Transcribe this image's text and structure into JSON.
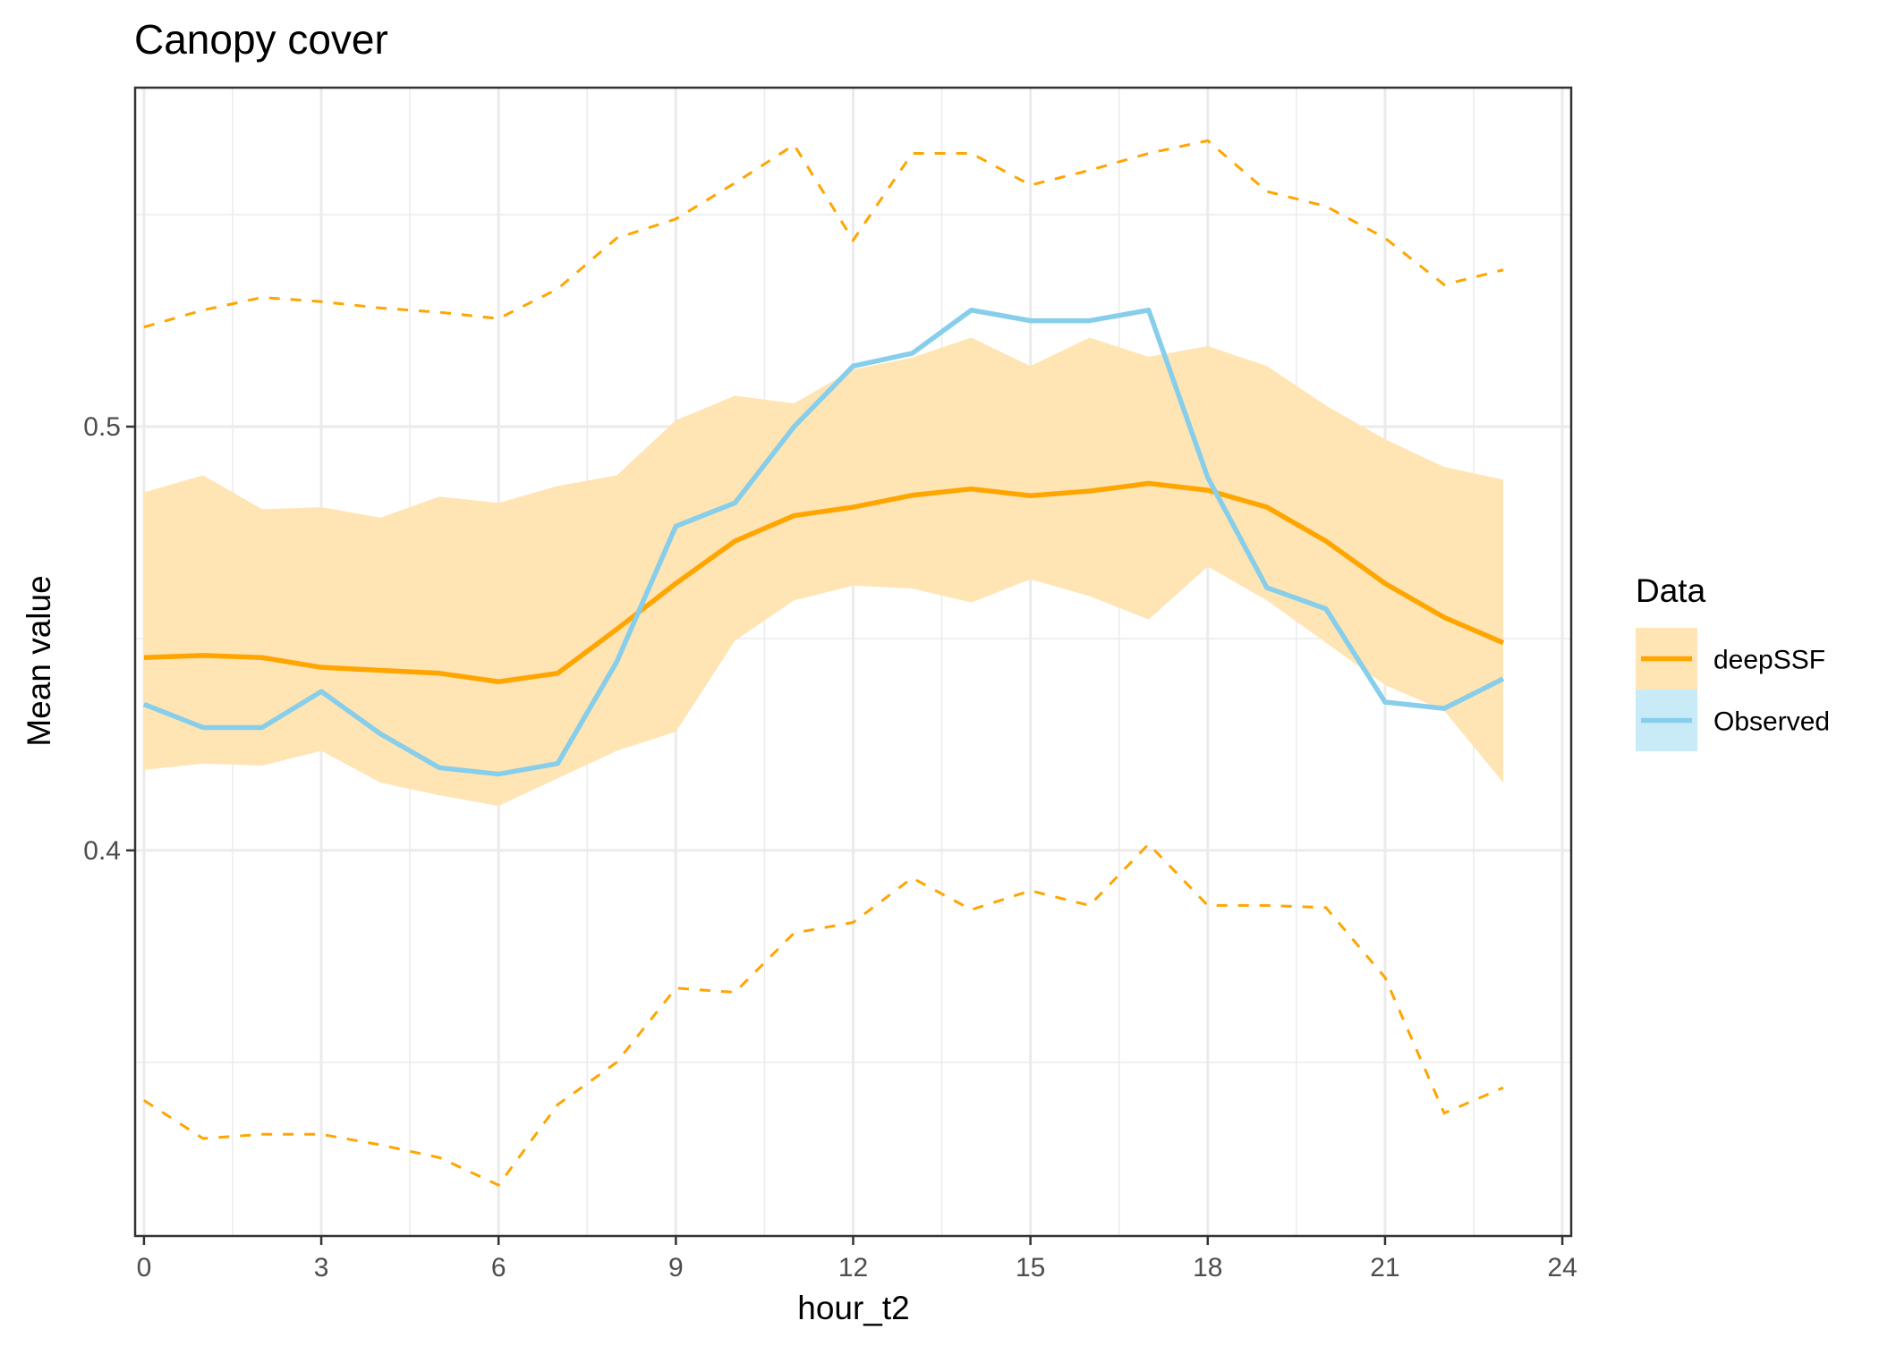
{
  "chart_data": {
    "type": "line",
    "title": "Canopy cover",
    "xlabel": "hour_t2",
    "ylabel": "Mean value",
    "x": [
      0,
      1,
      2,
      3,
      4,
      5,
      6,
      7,
      8,
      9,
      10,
      11,
      12,
      13,
      14,
      15,
      16,
      17,
      18,
      19,
      20,
      21,
      22,
      23
    ],
    "xlim": [
      -0.15,
      24.15
    ],
    "ylim": [
      0.309,
      0.58
    ],
    "x_ticks": [
      0,
      3,
      6,
      9,
      12,
      15,
      18,
      21,
      24
    ],
    "x_tick_labels": [
      "0",
      "3",
      "6",
      "9",
      "12",
      "15",
      "18",
      "21",
      "24"
    ],
    "y_ticks": [
      0.4,
      0.5
    ],
    "y_tick_labels": [
      "0.4",
      "0.5"
    ],
    "grid": true,
    "legend": {
      "title": "Data",
      "position": "right",
      "entries": [
        "deepSSF",
        "Observed"
      ]
    },
    "colors": {
      "deepSSF": "#FFA500",
      "Observed": "#87CEEB",
      "ribbon": "#FFE4B4",
      "grid": "#EBEBEB"
    },
    "series": [
      {
        "name": "deepSSF",
        "style": "solid",
        "values": [
          0.4455,
          0.446,
          0.4455,
          0.4432,
          0.4425,
          0.4418,
          0.4398,
          0.4418,
          0.4522,
          0.463,
          0.473,
          0.479,
          0.481,
          0.4838,
          0.4853,
          0.4837,
          0.4848,
          0.4866,
          0.485,
          0.481,
          0.473,
          0.463,
          0.455,
          0.449
        ]
      },
      {
        "name": "Observed",
        "style": "solid",
        "values": [
          0.4345,
          0.429,
          0.429,
          0.4375,
          0.4275,
          0.4195,
          0.418,
          0.4205,
          0.4445,
          0.4765,
          0.482,
          0.5,
          0.5143,
          0.5173,
          0.5275,
          0.525,
          0.525,
          0.5275,
          0.488,
          0.462,
          0.457,
          0.435,
          0.4335,
          0.4405
        ]
      }
    ],
    "ribbon": {
      "series": "deepSSF",
      "lower": [
        0.419,
        0.4205,
        0.42,
        0.4235,
        0.416,
        0.413,
        0.4105,
        0.417,
        0.4235,
        0.428,
        0.4495,
        0.459,
        0.4625,
        0.4618,
        0.4585,
        0.464,
        0.46,
        0.4545,
        0.467,
        0.459,
        0.449,
        0.439,
        0.433,
        0.416
      ],
      "upper": [
        0.4845,
        0.4885,
        0.4805,
        0.481,
        0.4785,
        0.4835,
        0.482,
        0.486,
        0.4885,
        0.5015,
        0.5073,
        0.5055,
        0.5135,
        0.5163,
        0.521,
        0.5143,
        0.521,
        0.5165,
        0.519,
        0.5143,
        0.505,
        0.497,
        0.4905,
        0.4875
      ]
    },
    "outer_bounds": {
      "series": "deepSSF",
      "style": "dashed",
      "lower": [
        0.341,
        0.332,
        0.333,
        0.333,
        0.3305,
        0.3275,
        0.321,
        0.34,
        0.35,
        0.3675,
        0.3665,
        0.3805,
        0.383,
        0.3935,
        0.386,
        0.3905,
        0.387,
        0.4015,
        0.387,
        0.387,
        0.3865,
        0.37,
        0.338,
        0.344
      ],
      "upper": [
        0.5235,
        0.5275,
        0.5305,
        0.5295,
        0.528,
        0.527,
        0.5255,
        0.5325,
        0.5445,
        0.549,
        0.5575,
        0.5665,
        0.544,
        0.5645,
        0.5645,
        0.557,
        0.5605,
        0.5645,
        0.5675,
        0.5555,
        0.552,
        0.5445,
        0.5335,
        0.537
      ]
    }
  }
}
